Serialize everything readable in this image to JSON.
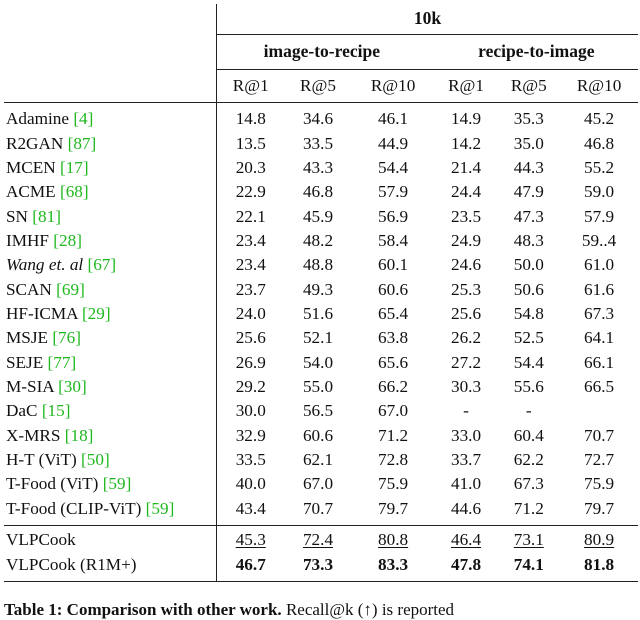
{
  "header": {
    "top": "10k",
    "groups": [
      "image-to-recipe",
      "recipe-to-image"
    ],
    "metrics": [
      "R@1",
      "R@5",
      "R@10",
      "R@1",
      "R@5",
      "R@10"
    ]
  },
  "rows": [
    {
      "name": "Adamine ",
      "ref": "[4]",
      "values": [
        "14.8",
        "34.6",
        "46.1",
        "14.9",
        "35.3",
        "45.2"
      ]
    },
    {
      "name": "R2GAN ",
      "ref": "[87]",
      "values": [
        "13.5",
        "33.5",
        "44.9",
        "14.2",
        "35.0",
        "46.8"
      ]
    },
    {
      "name": "MCEN ",
      "ref": "[17]",
      "values": [
        "20.3",
        "43.3",
        "54.4",
        "21.4",
        "44.3",
        "55.2"
      ]
    },
    {
      "name": "ACME ",
      "ref": "[68]",
      "values": [
        "22.9",
        "46.8",
        "57.9",
        "24.4",
        "47.9",
        "59.0"
      ]
    },
    {
      "name": "SN ",
      "ref": "[81]",
      "values": [
        "22.1",
        "45.9",
        "56.9",
        "23.5",
        "47.3",
        "57.9"
      ]
    },
    {
      "name": "IMHF ",
      "ref": "[28]",
      "values": [
        "23.4",
        "48.2",
        "58.4",
        "24.9",
        "48.3",
        "59..4"
      ]
    },
    {
      "name": "Wang et. al ",
      "ref": "[67]",
      "italic": true,
      "values": [
        "23.4",
        "48.8",
        "60.1",
        "24.6",
        "50.0",
        "61.0"
      ]
    },
    {
      "name": "SCAN ",
      "ref": "[69]",
      "values": [
        "23.7",
        "49.3",
        "60.6",
        "25.3",
        "50.6",
        "61.6"
      ]
    },
    {
      "name": "HF-ICMA ",
      "ref": "[29]",
      "values": [
        "24.0",
        "51.6",
        "65.4",
        "25.6",
        "54.8",
        "67.3"
      ]
    },
    {
      "name": "MSJE ",
      "ref": "[76]",
      "values": [
        "25.6",
        "52.1",
        "63.8",
        "26.2",
        "52.5",
        "64.1"
      ]
    },
    {
      "name": "SEJE ",
      "ref": "[77]",
      "values": [
        "26.9",
        "54.0",
        "65.6",
        "27.2",
        "54.4",
        "66.1"
      ]
    },
    {
      "name": "M-SIA ",
      "ref": "[30]",
      "values": [
        "29.2",
        "55.0",
        "66.2",
        "30.3",
        "55.6",
        "66.5"
      ]
    },
    {
      "name": "DaC ",
      "ref": "[15]",
      "values": [
        "30.0",
        "56.5",
        "67.0",
        "-",
        "-",
        ""
      ]
    },
    {
      "name": "X-MRS ",
      "ref": "[18]",
      "values": [
        "32.9",
        "60.6",
        "71.2",
        "33.0",
        "60.4",
        "70.7"
      ]
    },
    {
      "name": "H-T (ViT) ",
      "ref": "[50]",
      "values": [
        "33.5",
        "62.1",
        "72.8",
        "33.7",
        "62.2",
        "72.7"
      ]
    },
    {
      "name": "T-Food (ViT) ",
      "ref": "[59]",
      "values": [
        "40.0",
        "67.0",
        "75.9",
        "41.0",
        "67.3",
        "75.9"
      ]
    },
    {
      "name": "T-Food (CLIP-ViT) ",
      "ref": "[59]",
      "values": [
        "43.4",
        "70.7",
        "79.7",
        "44.6",
        "71.2",
        "79.7"
      ]
    }
  ],
  "ours": [
    {
      "name": "VLPCook",
      "style": "underline",
      "values": [
        "45.3",
        "72.4",
        "80.8",
        "46.4",
        "73.1",
        "80.9"
      ]
    },
    {
      "name": "VLPCook (R1M+)",
      "style": "bold",
      "values": [
        "46.7",
        "73.3",
        "83.3",
        "47.8",
        "74.1",
        "81.8"
      ]
    }
  ],
  "caption": {
    "lead": "Table 1: Comparison with other work.",
    "text": " Recall@k (↑) is reported"
  }
}
